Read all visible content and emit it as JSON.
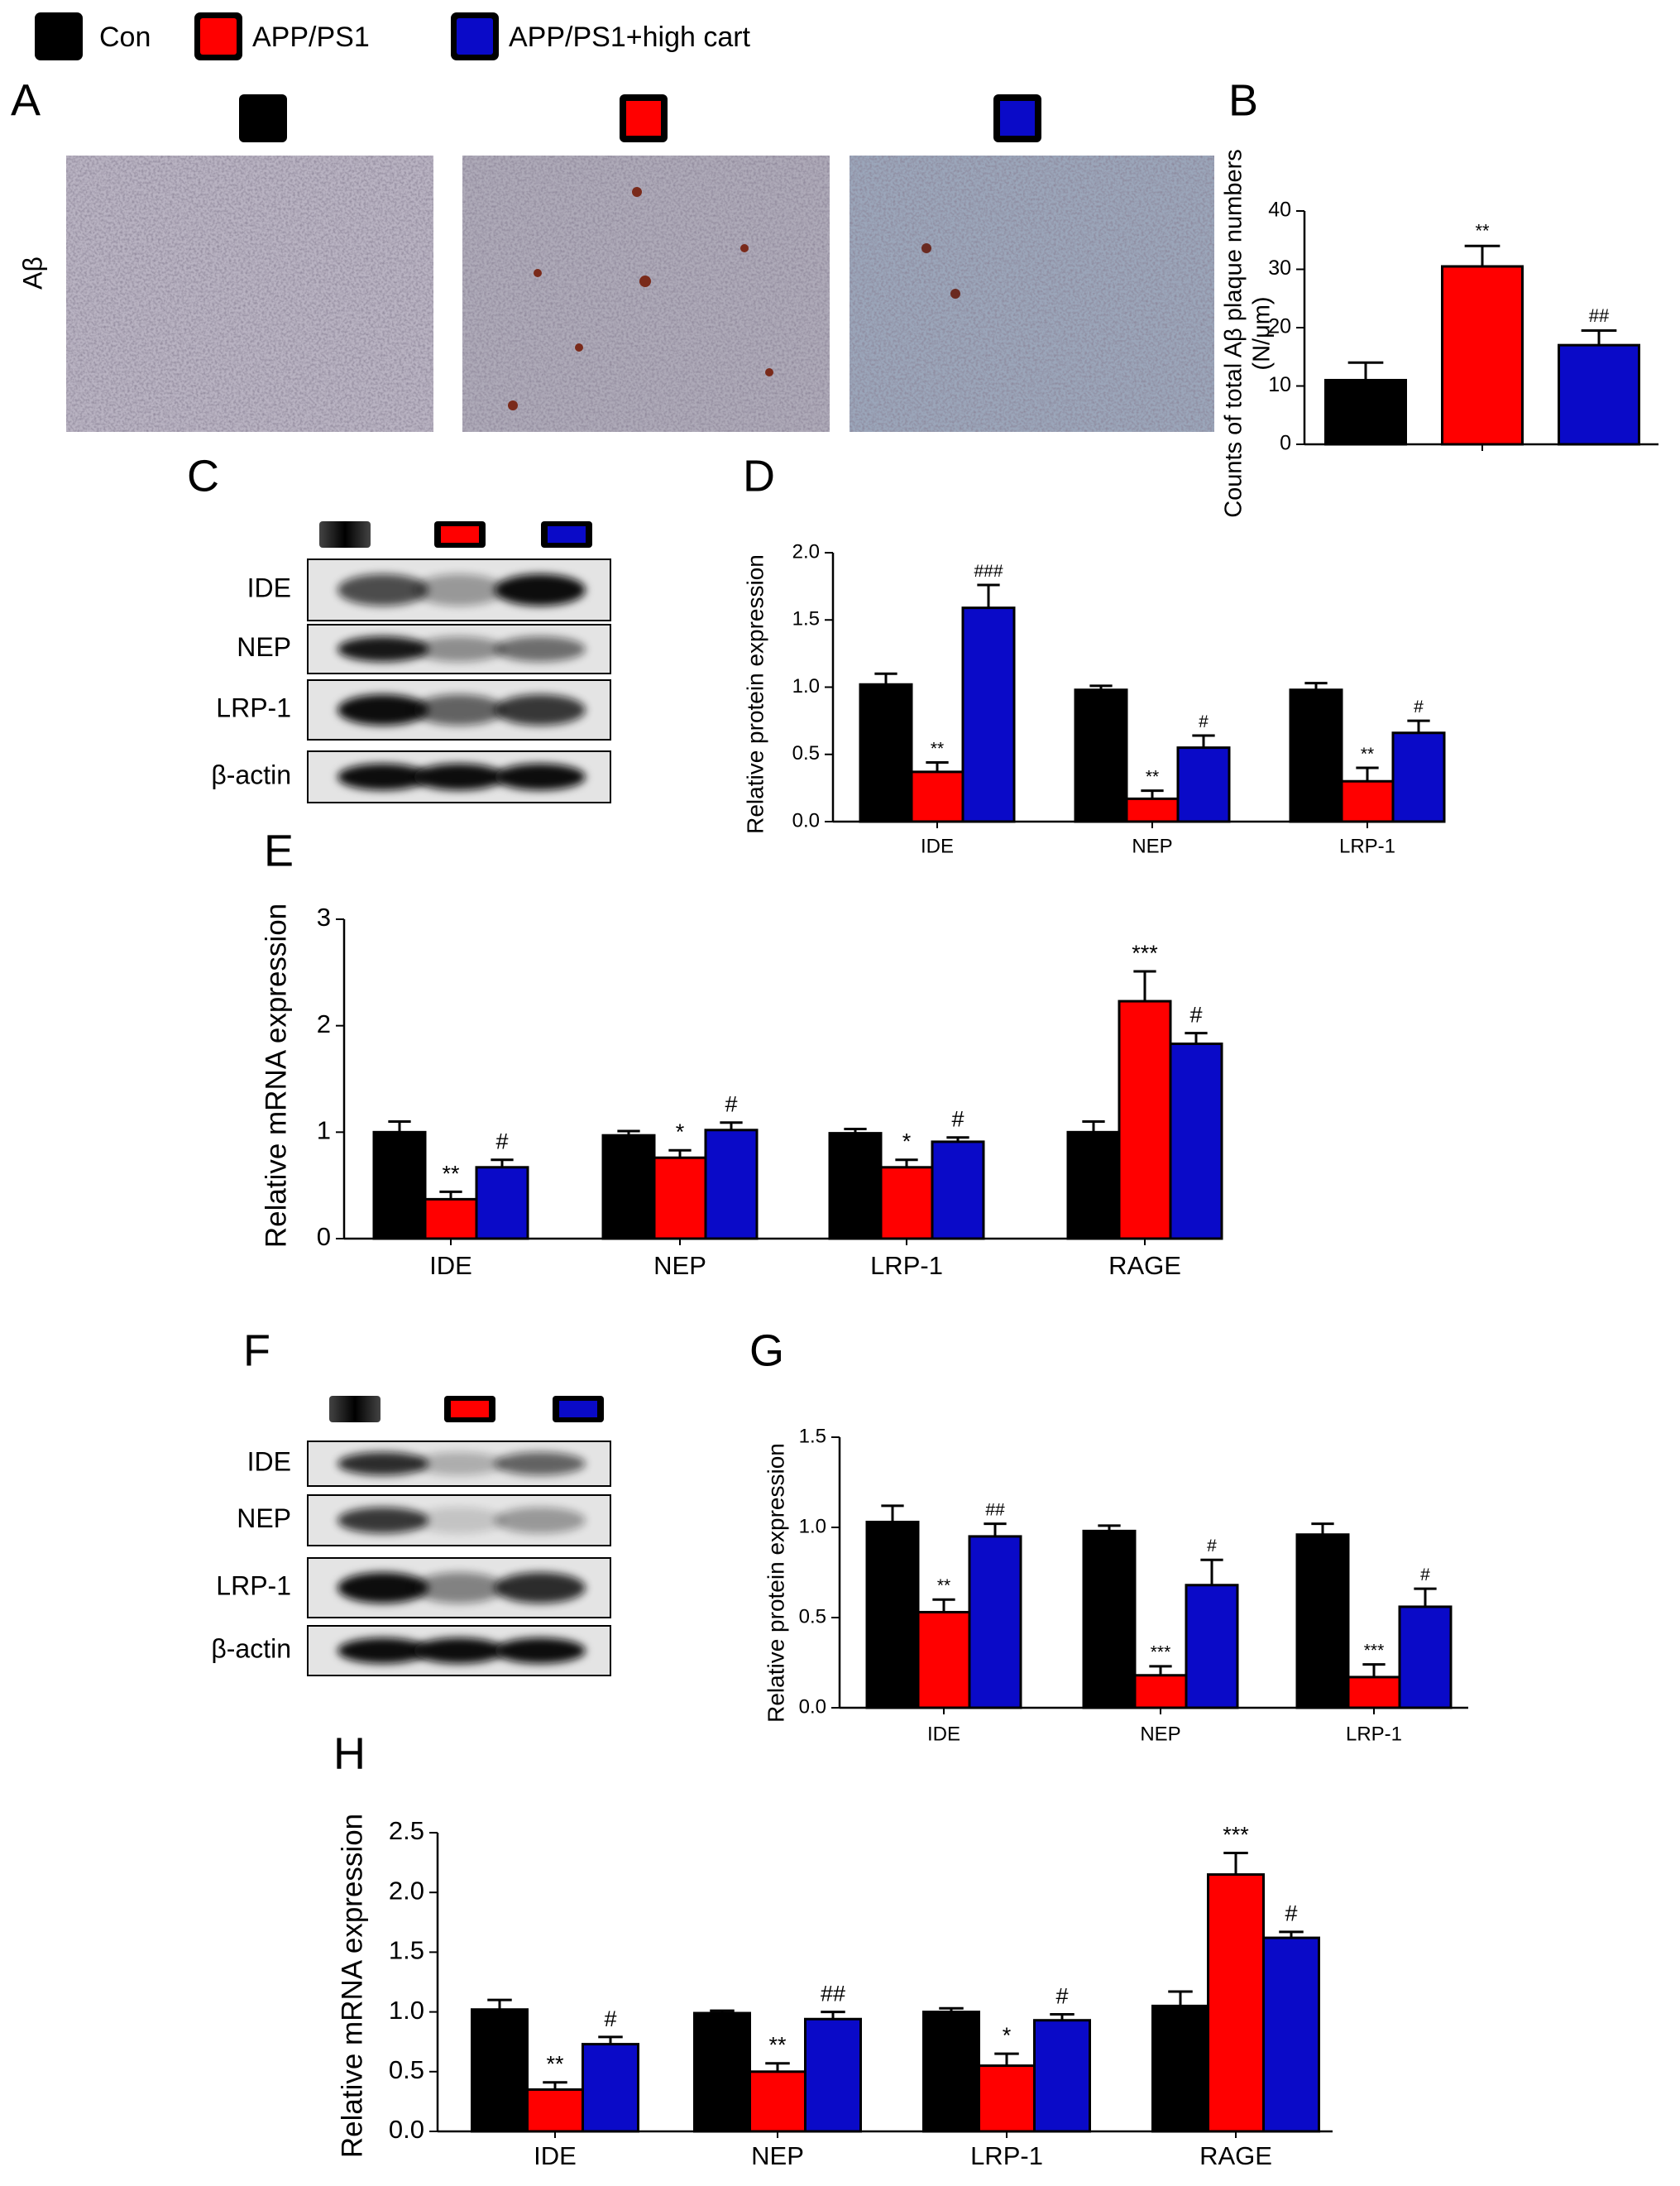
{
  "micrographs": {
    "panel": "A",
    "row_label": "Aβ"
  },
  "blots": [
    {
      "panel": "C",
      "rows": [
        "IDE",
        "NEP",
        "LRP-1",
        "β-actin"
      ]
    },
    {
      "panel": "F",
      "rows": [
        "IDE",
        "NEP",
        "LRP-1",
        "β-actin"
      ]
    }
  ],
  "chart_data": [
    {
      "type": "bar",
      "panel": "B",
      "ylabel": [
        "Counts of total Aβ plaque numbers",
        "(N/μm)"
      ],
      "ylim": [
        0,
        40
      ],
      "yticks": [
        0,
        10,
        20,
        30,
        40
      ],
      "series": [
        {
          "name": "Con",
          "color": "#000000",
          "values": [
            11
          ],
          "errors": [
            3
          ],
          "annotations": [
            null
          ]
        },
        {
          "name": "APP/PS1",
          "color": "#ff0000",
          "values": [
            30.5
          ],
          "errors": [
            3.5
          ],
          "annotations": [
            "**"
          ]
        },
        {
          "name": "APP/PS1+high cart",
          "color": "#0a0ac8",
          "values": [
            17
          ],
          "errors": [
            2.5
          ],
          "annotations": [
            "##"
          ]
        }
      ]
    },
    {
      "type": "bar",
      "panel": "D",
      "ylabel": [
        "Relative protein expression"
      ],
      "categories": [
        "IDE",
        "NEP",
        "LRP-1"
      ],
      "ylim": [
        0,
        2
      ],
      "yticks": [
        {
          "value": 0,
          "label": "0.0"
        },
        0.5,
        {
          "value": 1,
          "label": "1.0"
        },
        1.5,
        {
          "value": 2,
          "label": "2.0"
        }
      ],
      "series": [
        {
          "name": "Con",
          "color": "#000000",
          "values": [
            1.02,
            0.98,
            0.98
          ],
          "errors": [
            0.08,
            0.03,
            0.05
          ],
          "annotations": [
            null,
            null,
            null
          ]
        },
        {
          "name": "APP/PS1",
          "color": "#ff0000",
          "values": [
            0.37,
            0.17,
            0.3
          ],
          "errors": [
            0.07,
            0.06,
            0.1
          ],
          "annotations": [
            "**",
            "**",
            "**"
          ]
        },
        {
          "name": "APP/PS1+high cart",
          "color": "#0a0ac8",
          "values": [
            1.59,
            0.55,
            0.66
          ],
          "errors": [
            0.17,
            0.09,
            0.09
          ],
          "annotations": [
            "###",
            "#",
            "#"
          ]
        }
      ]
    },
    {
      "type": "bar",
      "panel": "E",
      "ylabel": [
        "Relative mRNA expression"
      ],
      "categories": [
        "IDE",
        "NEP",
        "LRP-1",
        "RAGE"
      ],
      "ylim": [
        0,
        3
      ],
      "yticks": [
        0,
        1,
        2,
        3
      ],
      "series": [
        {
          "name": "Con",
          "color": "#000000",
          "values": [
            1.0,
            0.97,
            0.99,
            1.0
          ],
          "errors": [
            0.1,
            0.04,
            0.04,
            0.1
          ],
          "annotations": [
            null,
            null,
            null,
            null
          ]
        },
        {
          "name": "APP/PS1",
          "color": "#ff0000",
          "values": [
            0.37,
            0.76,
            0.67,
            2.23
          ],
          "errors": [
            0.07,
            0.07,
            0.07,
            0.28
          ],
          "annotations": [
            "**",
            "*",
            "*",
            "***"
          ]
        },
        {
          "name": "APP/PS1+high cart",
          "color": "#0a0ac8",
          "values": [
            0.67,
            1.02,
            0.91,
            1.83
          ],
          "errors": [
            0.07,
            0.07,
            0.04,
            0.1
          ],
          "annotations": [
            "#",
            "#",
            "#",
            "#"
          ]
        }
      ]
    },
    {
      "type": "bar",
      "panel": "G",
      "ylabel": [
        "Relative protein expression"
      ],
      "categories": [
        "IDE",
        "NEP",
        "LRP-1"
      ],
      "ylim": [
        0,
        1.5
      ],
      "yticks": [
        {
          "value": 0,
          "label": "0.0"
        },
        0.5,
        {
          "value": 1,
          "label": "1.0"
        },
        1.5
      ],
      "series": [
        {
          "name": "Con",
          "color": "#000000",
          "values": [
            1.03,
            0.98,
            0.96
          ],
          "errors": [
            0.09,
            0.03,
            0.06
          ],
          "annotations": [
            null,
            null,
            null
          ]
        },
        {
          "name": "APP/PS1",
          "color": "#ff0000",
          "values": [
            0.53,
            0.18,
            0.17
          ],
          "errors": [
            0.07,
            0.05,
            0.07
          ],
          "annotations": [
            "**",
            "***",
            "***"
          ]
        },
        {
          "name": "APP/PS1+high cart",
          "color": "#0a0ac8",
          "values": [
            0.95,
            0.68,
            0.56
          ],
          "errors": [
            0.07,
            0.14,
            0.1
          ],
          "annotations": [
            "##",
            "#",
            "#"
          ]
        }
      ]
    },
    {
      "type": "bar",
      "panel": "H",
      "ylabel": [
        "Relative mRNA expression"
      ],
      "categories": [
        "IDE",
        "NEP",
        "LRP-1",
        "RAGE"
      ],
      "ylim": [
        0,
        2.5
      ],
      "yticks": [
        {
          "value": 0,
          "label": "0.0"
        },
        0.5,
        {
          "value": 1,
          "label": "1.0"
        },
        1.5,
        {
          "value": 2,
          "label": "2.0"
        },
        2.5
      ],
      "series": [
        {
          "name": "Con",
          "color": "#000000",
          "values": [
            1.02,
            0.99,
            1.0,
            1.05
          ],
          "errors": [
            0.08,
            0.02,
            0.03,
            0.12
          ],
          "annotations": [
            null,
            null,
            null,
            null
          ]
        },
        {
          "name": "APP/PS1",
          "color": "#ff0000",
          "values": [
            0.35,
            0.5,
            0.55,
            2.15
          ],
          "errors": [
            0.06,
            0.07,
            0.1,
            0.18
          ],
          "annotations": [
            "**",
            "**",
            "*",
            "***"
          ]
        },
        {
          "name": "APP/PS1+high cart",
          "color": "#0a0ac8",
          "values": [
            0.73,
            0.94,
            0.93,
            1.62
          ],
          "errors": [
            0.06,
            0.06,
            0.05,
            0.05
          ],
          "annotations": [
            "#",
            "##",
            "#",
            "#"
          ]
        }
      ]
    }
  ]
}
